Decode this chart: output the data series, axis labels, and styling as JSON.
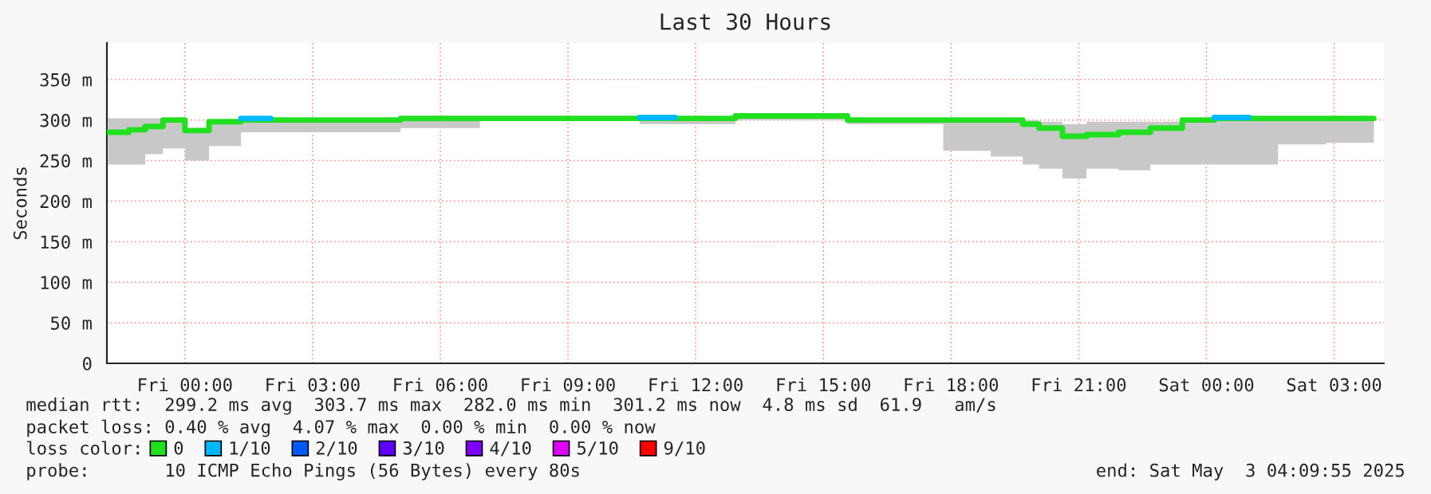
{
  "chart_data": {
    "type": "step",
    "title": "Last 30 Hours",
    "ylabel": "Seconds",
    "legend_title": "loss color:",
    "legend": "bottom",
    "x": [
      "2025-05-01T22:12",
      "2025-05-01T22:41",
      "2025-05-01T23:04",
      "2025-05-01T23:29",
      "2025-05-02T00:00",
      "2025-05-02T00:34",
      "2025-05-02T01:19",
      "2025-05-02T03:11",
      "2025-05-02T05:04",
      "2025-05-02T06:56",
      "2025-05-02T10:41",
      "2025-05-02T12:56",
      "2025-05-02T15:34",
      "2025-05-02T17:49",
      "2025-05-02T18:56",
      "2025-05-02T19:41",
      "2025-05-02T20:04",
      "2025-05-02T20:37",
      "2025-05-02T21:11",
      "2025-05-02T21:56",
      "2025-05-02T22:41",
      "2025-05-02T23:26",
      "2025-05-03T00:11",
      "2025-05-03T01:41",
      "2025-05-03T02:49",
      "2025-05-03T03:56"
    ],
    "series": [
      {
        "name": "0",
        "color": "#20e020",
        "values": [
          285,
          288,
          292,
          300,
          287,
          298,
          300,
          300,
          302,
          302,
          302,
          305,
          300,
          300,
          300,
          295,
          290,
          280,
          282,
          285,
          290,
          300,
          302,
          302,
          302,
          302
        ],
        "lower": [
          245,
          245,
          258,
          265,
          250,
          268,
          285,
          285,
          290,
          300,
          295,
          300,
          295,
          262,
          255,
          245,
          240,
          228,
          240,
          238,
          245,
          245,
          245,
          270,
          272,
          275
        ],
        "upper": [
          302,
          302,
          302,
          302,
          290,
          300,
          300,
          302,
          305,
          305,
          303,
          308,
          302,
          300,
          300,
          300,
          298,
          295,
          298,
          298,
          298,
          300,
          302,
          302,
          302,
          302
        ]
      },
      {
        "name": "1/10",
        "color": "#00b8ff",
        "x": [
          "2025-05-02T01:19",
          "2025-05-02T02:00",
          "2025-05-02T02:01",
          "2025-05-02T10:41",
          "2025-05-02T11:30",
          "2025-05-02T11:31",
          "2025-05-03T00:11",
          "2025-05-03T01:00"
        ],
        "values": [
          302,
          302,
          null,
          303,
          303,
          null,
          303,
          303
        ]
      },
      {
        "name": "2/10",
        "color": "#0059ff",
        "values": [
          null,
          null,
          null,
          null,
          null,
          null,
          null,
          null,
          null,
          null,
          null,
          null,
          null,
          null,
          null,
          null,
          null,
          null,
          null,
          null,
          null,
          null,
          null,
          null,
          null,
          null
        ]
      },
      {
        "name": "3/10",
        "color": "#5e00ff",
        "values": [
          null,
          null,
          null,
          null,
          null,
          null,
          null,
          null,
          null,
          null,
          null,
          null,
          null,
          null,
          null,
          null,
          null,
          null,
          null,
          null,
          null,
          null,
          null,
          null,
          null,
          null
        ]
      },
      {
        "name": "4/10",
        "color": "#7e00ff",
        "values": [
          null,
          null,
          null,
          null,
          null,
          null,
          null,
          null,
          null,
          null,
          null,
          null,
          null,
          null,
          null,
          null,
          null,
          null,
          null,
          null,
          null,
          null,
          null,
          null,
          null,
          null
        ]
      },
      {
        "name": "5/10",
        "color": "#dd00ff",
        "values": [
          null,
          null,
          null,
          null,
          null,
          null,
          null,
          null,
          null,
          null,
          null,
          null,
          null,
          null,
          null,
          null,
          null,
          null,
          null,
          null,
          null,
          null,
          null,
          null,
          null,
          null
        ]
      },
      {
        "name": "9/10",
        "color": "#ff0000",
        "values": [
          null,
          null,
          null,
          null,
          null,
          null,
          null,
          null,
          null,
          null,
          null,
          null,
          null,
          null,
          null,
          null,
          null,
          null,
          null,
          null,
          null,
          null,
          null,
          null,
          null,
          null
        ]
      }
    ],
    "xlim": [
      "2025-05-01T22:10",
      "2025-05-03T04:10"
    ],
    "xticks": [
      {
        "value": "2025-05-02T00:00",
        "label": "Fri 00:00"
      },
      {
        "value": "2025-05-02T03:00",
        "label": "Fri 03:00"
      },
      {
        "value": "2025-05-02T06:00",
        "label": "Fri 06:00"
      },
      {
        "value": "2025-05-02T09:00",
        "label": "Fri 09:00"
      },
      {
        "value": "2025-05-02T12:00",
        "label": "Fri 12:00"
      },
      {
        "value": "2025-05-02T15:00",
        "label": "Fri 15:00"
      },
      {
        "value": "2025-05-02T18:00",
        "label": "Fri 18:00"
      },
      {
        "value": "2025-05-02T21:00",
        "label": "Fri 21:00"
      },
      {
        "value": "2025-05-03T00:00",
        "label": "Sat 00:00"
      },
      {
        "value": "2025-05-03T03:00",
        "label": "Sat 03:00"
      }
    ],
    "ylim": [
      0,
      395
    ],
    "yticks": [
      0,
      {
        "value": 50,
        "label": "50 m"
      },
      {
        "value": 100,
        "label": "100 m"
      },
      {
        "value": 150,
        "label": "150 m"
      },
      {
        "value": 200,
        "label": "200 m"
      },
      {
        "value": 250,
        "label": "250 m"
      },
      {
        "value": 300,
        "label": "300 m"
      },
      {
        "value": 350,
        "label": "350 m"
      }
    ],
    "grid": true,
    "annotations": [
      "median rtt:  299.2 ms avg  303.7 ms max  282.0 ms min  301.2 ms now  4.8 ms sd  61.9   am/s",
      "packet loss: 0.40 % avg  4.07 % max  0.00 % min  0.00 % now",
      "probe:       10 ICMP Echo Pings (56 Bytes) every 80s",
      "end: Sat May  3 04:09:55 2025"
    ]
  }
}
